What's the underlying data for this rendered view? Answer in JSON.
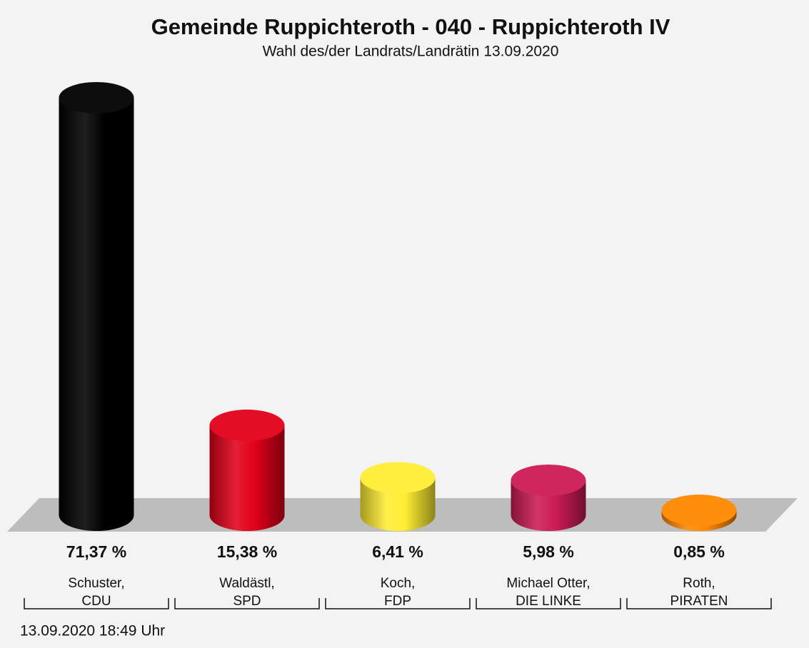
{
  "chart_data": {
    "type": "bar",
    "title": "Gemeinde Ruppichteroth - 040 - Ruppichteroth IV",
    "subtitle": "Wahl des/der Landrats/Landrätin 13.09.2020",
    "categories": [
      "Schuster,",
      "Waldästl,",
      "Koch,",
      "Michael Otter,",
      "Roth,"
    ],
    "parties": [
      "CDU",
      "SPD",
      "FDP",
      "DIE LINKE",
      "PIRATEN"
    ],
    "values": [
      71.37,
      15.38,
      6.41,
      5.98,
      0.85
    ],
    "value_labels": [
      "71,37 %",
      "15,38 %",
      "6,41 %",
      "5,98 %",
      "0,85 %"
    ],
    "colors": [
      "#000000",
      "#e2001a",
      "#ffed33",
      "#cc1b55",
      "#ff8800"
    ],
    "footer": "13.09.2020 18:49 Uhr"
  }
}
